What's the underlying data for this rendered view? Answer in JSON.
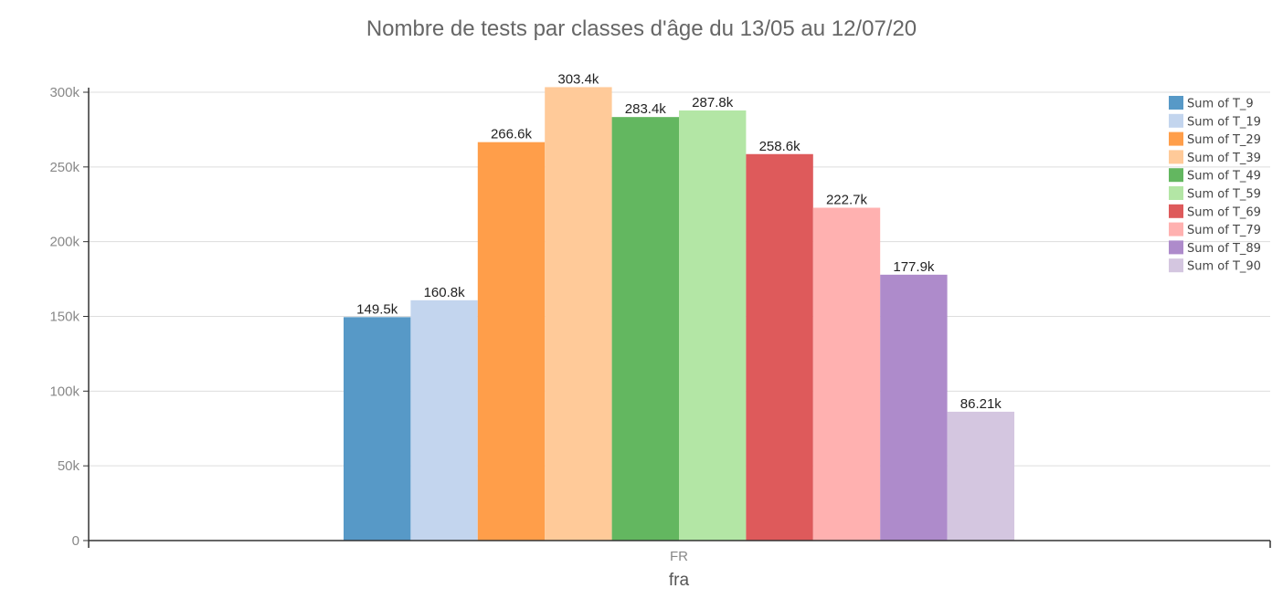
{
  "chart_data": {
    "type": "bar",
    "title": "Nombre de tests par classes d'âge du 13/05 au 12/07/20",
    "xlabel": "fra",
    "ylabel": "",
    "categories": [
      "FR"
    ],
    "ylim": [
      0,
      300000
    ],
    "yticks": [
      0,
      50000,
      100000,
      150000,
      200000,
      250000,
      300000
    ],
    "ytick_labels": [
      "0",
      "50k",
      "100k",
      "150k",
      "200k",
      "250k",
      "300k"
    ],
    "grid": true,
    "legend_position": "top-right",
    "series": [
      {
        "name": "Sum of T_9",
        "values": [
          149500
        ],
        "label": "149.5k",
        "color": "#5799c7"
      },
      {
        "name": "Sum of T_19",
        "values": [
          160800
        ],
        "label": "160.8k",
        "color": "#c3d5ee"
      },
      {
        "name": "Sum of T_29",
        "values": [
          266600
        ],
        "label": "266.6k",
        "color": "#ff9e4a"
      },
      {
        "name": "Sum of T_39",
        "values": [
          303400
        ],
        "label": "303.4k",
        "color": "#ffca99"
      },
      {
        "name": "Sum of T_49",
        "values": [
          283400
        ],
        "label": "283.4k",
        "color": "#63b760"
      },
      {
        "name": "Sum of T_59",
        "values": [
          287800
        ],
        "label": "287.8k",
        "color": "#b3e6a5"
      },
      {
        "name": "Sum of T_69",
        "values": [
          258600
        ],
        "label": "258.6k",
        "color": "#de5a5b"
      },
      {
        "name": "Sum of T_79",
        "values": [
          222700
        ],
        "label": "222.7k",
        "color": "#ffb1b0"
      },
      {
        "name": "Sum of T_89",
        "values": [
          177900
        ],
        "label": "177.9k",
        "color": "#ae8bcb"
      },
      {
        "name": "Sum of T_90",
        "values": [
          86210
        ],
        "label": "86.21k",
        "color": "#d4c6e0"
      }
    ]
  }
}
